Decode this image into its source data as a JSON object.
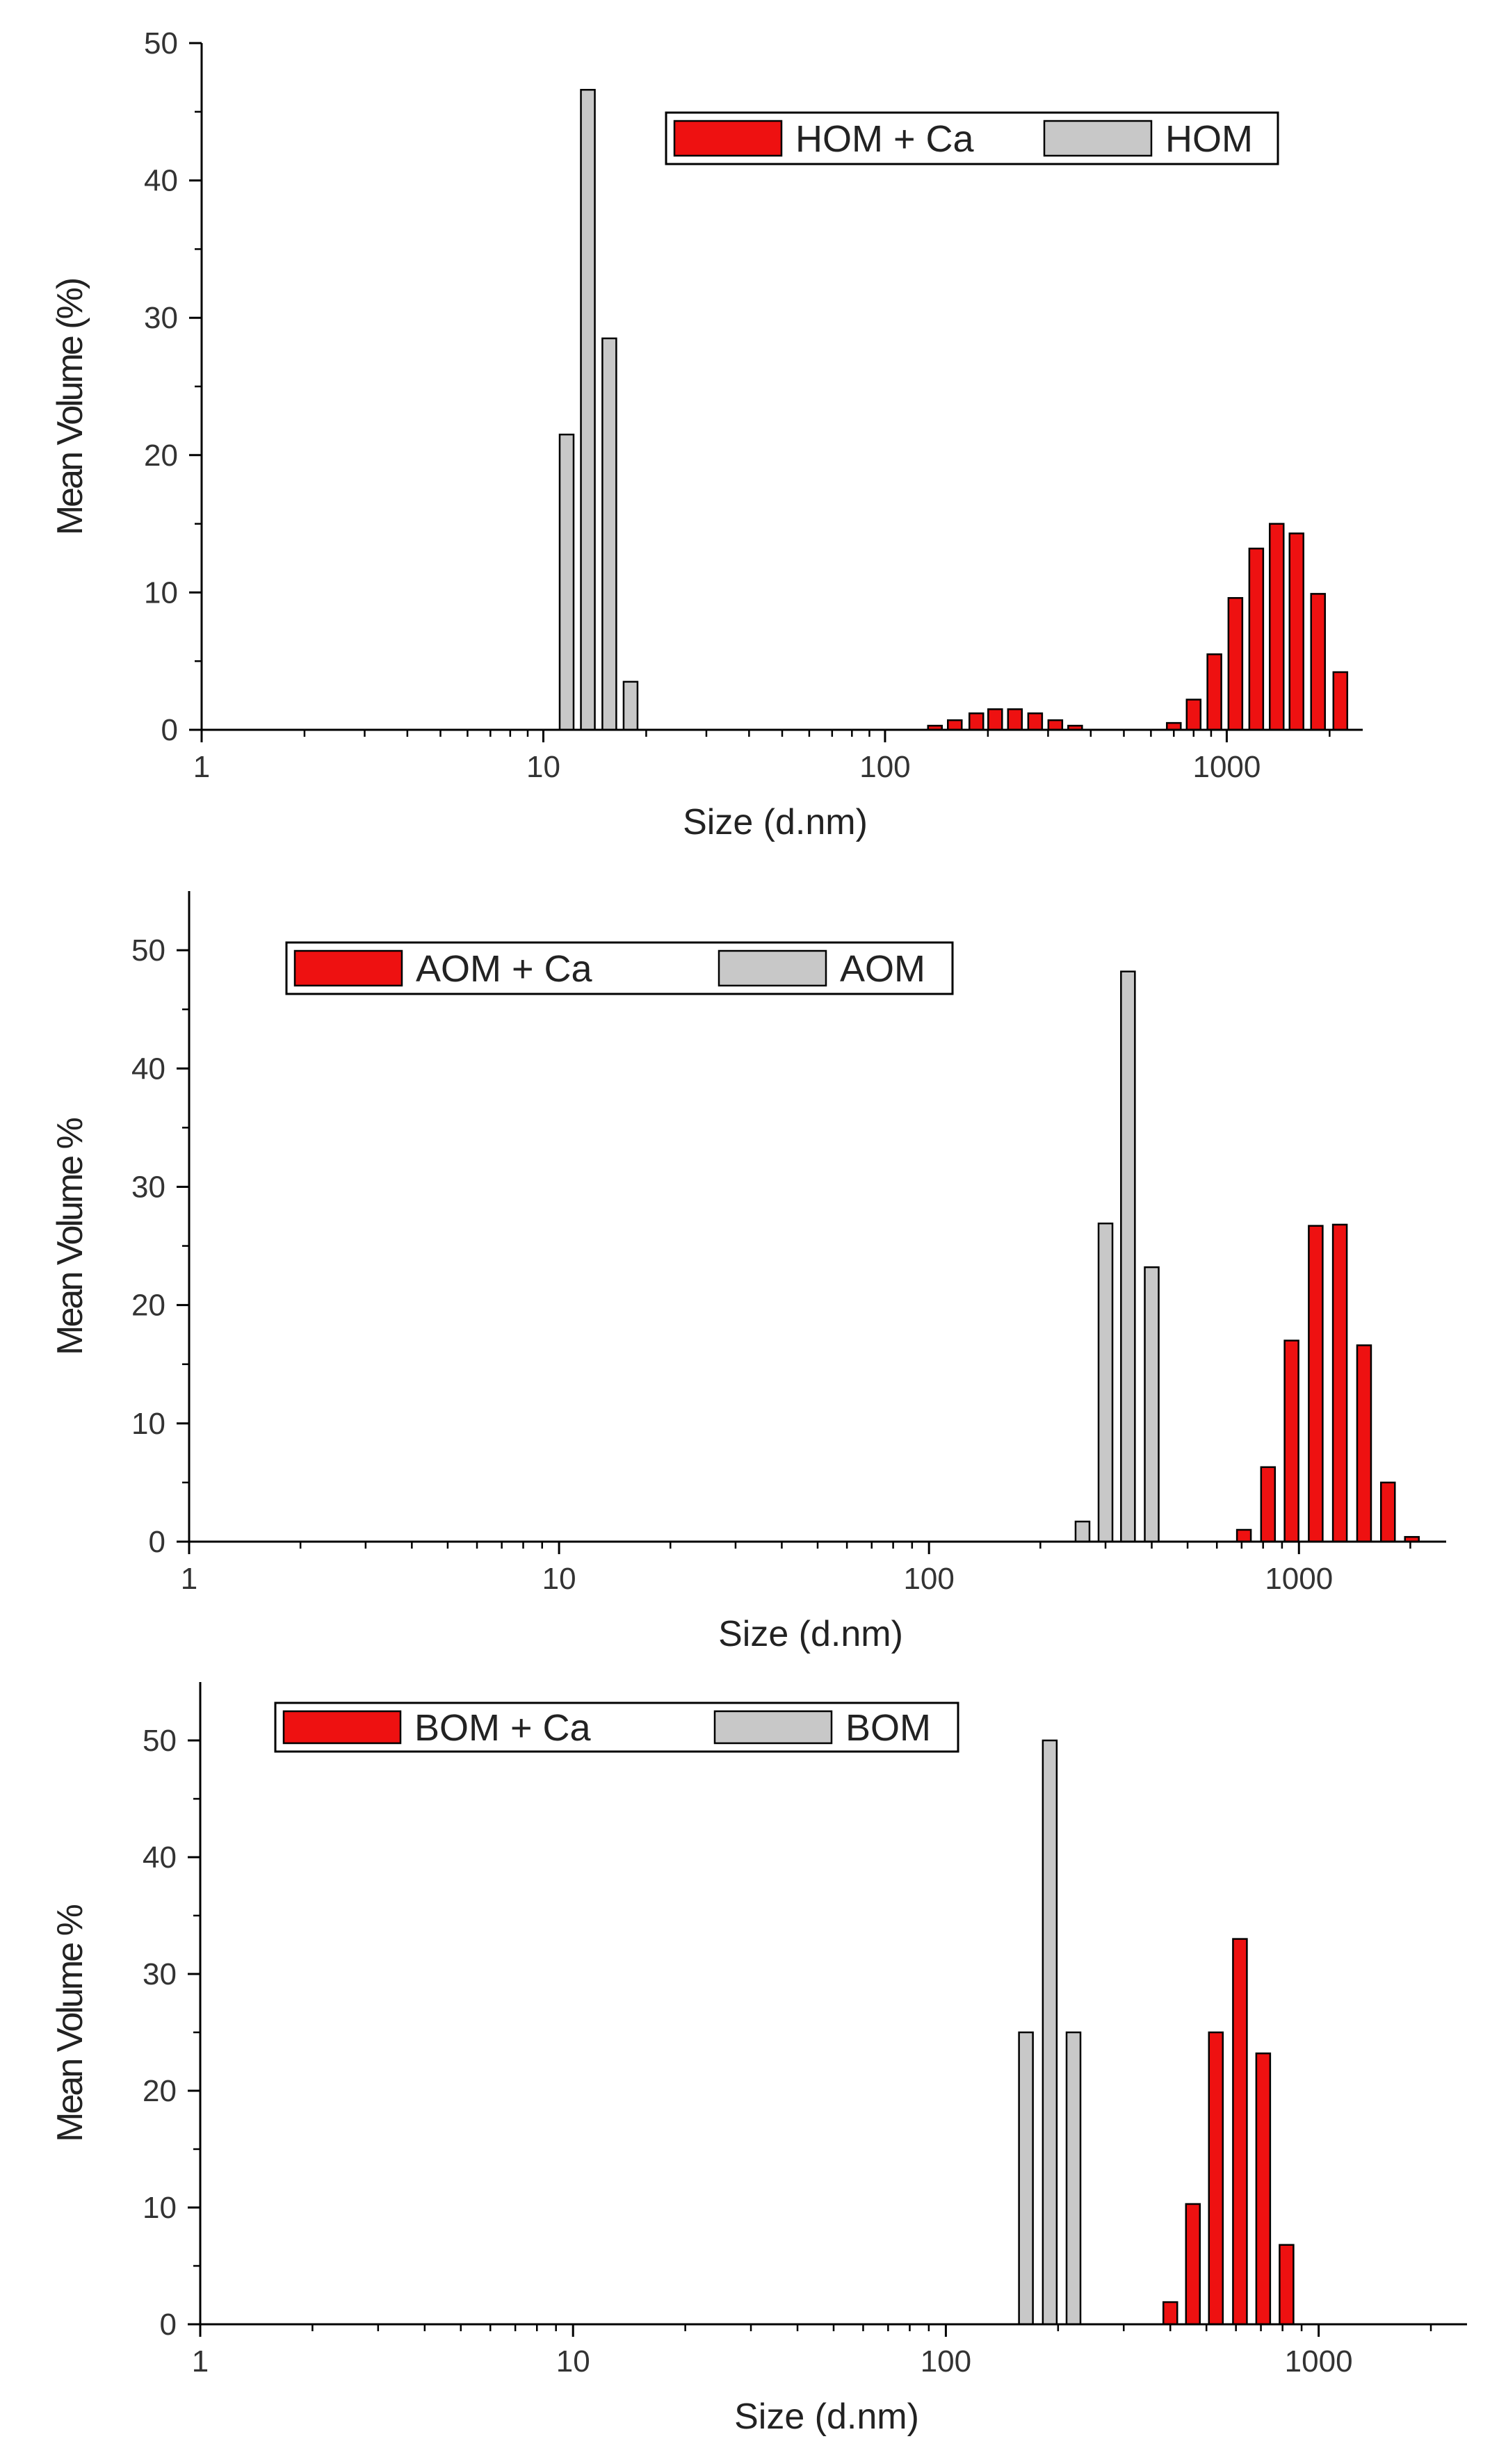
{
  "colors": {
    "with_ca": "#ee1111",
    "without_ca": "#c8c8c8",
    "axis": "#000000"
  },
  "chart_data": [
    {
      "type": "bar",
      "xscale": "log",
      "xlabel": "Size (d.nm)",
      "ylabel": "Mean Volume (%)",
      "xlim": [
        1,
        2500
      ],
      "ylim": [
        0,
        50
      ],
      "xticks": [
        1,
        10,
        100,
        1000
      ],
      "xtick_labels": [
        "1",
        "10",
        "100",
        "1000"
      ],
      "yticks": [
        0,
        10,
        20,
        30,
        40,
        50
      ],
      "ytick_labels": [
        "0",
        "10",
        "20",
        "30",
        "40",
        "50"
      ],
      "legend_position": "top-right",
      "series": [
        {
          "name": "HOM + Ca",
          "color": "with_ca",
          "x": [
            140,
            160,
            185,
            210,
            240,
            275,
            315,
            360,
            700,
            800,
            920,
            1060,
            1220,
            1400,
            1600,
            1850,
            2150
          ],
          "values": [
            0.3,
            0.7,
            1.2,
            1.5,
            1.5,
            1.2,
            0.7,
            0.3,
            0.5,
            2.2,
            5.5,
            9.6,
            13.2,
            15.0,
            14.3,
            9.9,
            4.2
          ]
        },
        {
          "name": "HOM",
          "color": "without_ca",
          "x": [
            11.7,
            13.5,
            15.6,
            18.0
          ],
          "values": [
            21.5,
            46.6,
            28.5,
            3.5
          ]
        }
      ]
    },
    {
      "type": "bar",
      "xscale": "log",
      "xlabel": "Size (d.nm)",
      "ylabel": "Mean Volume %",
      "xlim": [
        1,
        2500
      ],
      "ylim": [
        0,
        55
      ],
      "xticks": [
        1,
        10,
        100,
        1000
      ],
      "xtick_labels": [
        "1",
        "10",
        "100",
        "1000"
      ],
      "yticks": [
        0,
        10,
        20,
        30,
        40,
        50
      ],
      "ytick_labels": [
        "0",
        "10",
        "20",
        "30",
        "40",
        "50"
      ],
      "legend_position": "top-left",
      "series": [
        {
          "name": "AOM + Ca",
          "color": "with_ca",
          "x": [
            710,
            825,
            955,
            1110,
            1290,
            1500,
            1740,
            2020
          ],
          "values": [
            1.0,
            6.3,
            17.0,
            26.7,
            26.8,
            16.6,
            5.0,
            0.4
          ]
        },
        {
          "name": "AOM",
          "color": "without_ca",
          "x": [
            260,
            300,
            345,
            400
          ],
          "values": [
            1.7,
            26.9,
            48.2,
            23.2
          ]
        }
      ]
    },
    {
      "type": "bar",
      "xscale": "log",
      "xlabel": "Size (d.nm)",
      "ylabel": "Mean Volume %",
      "xlim": [
        1,
        2500
      ],
      "ylim": [
        0,
        55
      ],
      "xticks": [
        1,
        10,
        100,
        1000
      ],
      "xtick_labels": [
        "1",
        "10",
        "100",
        "1000"
      ],
      "yticks": [
        0,
        10,
        20,
        30,
        40,
        50
      ],
      "ytick_labels": [
        "0",
        "10",
        "20",
        "30",
        "40",
        "50"
      ],
      "legend_position": "top-left",
      "series": [
        {
          "name": "BOM + Ca",
          "color": "with_ca",
          "x": [
            400,
            460,
            530,
            615,
            710,
            820
          ],
          "values": [
            1.9,
            10.3,
            25.0,
            33.0,
            23.2,
            6.8
          ]
        },
        {
          "name": "BOM",
          "color": "without_ca",
          "x": [
            164,
            190,
            220
          ],
          "values": [
            25.0,
            50.0,
            25.0
          ]
        }
      ]
    }
  ]
}
